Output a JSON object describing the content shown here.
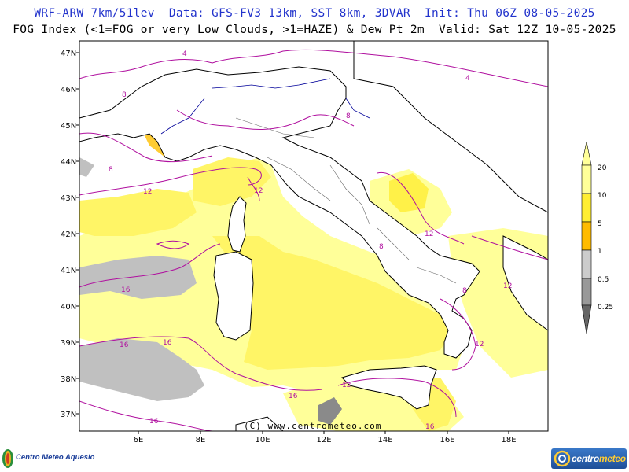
{
  "header": {
    "line1": "WRF-ARW 7km/51lev  Data: GFS-FV3 13km, SST 8km, 3DVAR  Init: Thu 06Z 08-05-2025",
    "line2": "FOG Index (<1=FOG or very Low Clouds, >1=HAZE) & Dew Pt 2m  Valid: Sat 12Z 10-05-2025"
  },
  "map": {
    "latitude_labels": [
      "47N",
      "46N",
      "45N",
      "44N",
      "43N",
      "42N",
      "41N",
      "40N",
      "39N",
      "38N",
      "37N"
    ],
    "longitude_labels": [
      "6E",
      "8E",
      "10E",
      "12E",
      "14E",
      "16E",
      "18E"
    ],
    "dew_point_contour_labels": [
      "4",
      "8",
      "12",
      "16"
    ],
    "credit": "(C) www.centrometeo.com"
  },
  "colorbar": {
    "labels": [
      "20",
      "10",
      "5",
      "1",
      "0.5",
      "0.25"
    ],
    "colors": {
      "fog_index_10_20": "#ffff99",
      "fog_index_5_10": "#ffee33",
      "fog_index_1_5": "#ffbb00",
      "fog_index_0_5_1": "#cccccc",
      "fog_index_0_25_0_5": "#999999",
      "fog_index_below_0_25": "#666666",
      "dew_point_contour": "#b0109f",
      "coastline": "#000000",
      "border": "#000099"
    }
  },
  "logos": {
    "left": "Centro Meteo Aquesio",
    "right_main": "centro",
    "right_accent": "meteo"
  }
}
